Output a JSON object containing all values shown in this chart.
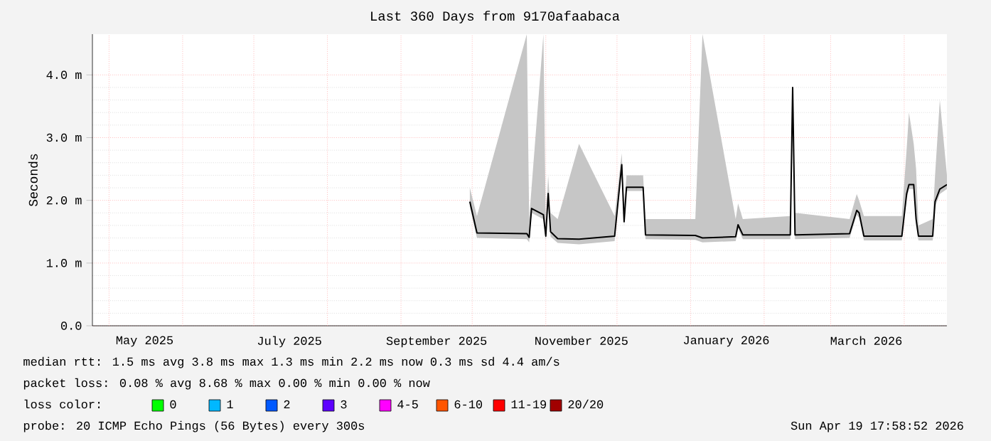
{
  "chart_data": {
    "type": "line",
    "title": "Last 360 Days from 9170afaabaca",
    "ylabel": "Seconds",
    "xlim": [
      "2025-04-24",
      "2026-04-19"
    ],
    "xticks": [
      {
        "value": "2025-05-01",
        "label": null
      },
      {
        "value": "2025-05-16",
        "label": "May 2025"
      },
      {
        "value": "2025-06-01",
        "label": null
      },
      {
        "value": "2025-07-01",
        "label": null
      },
      {
        "value": "2025-07-16",
        "label": "July 2025"
      },
      {
        "value": "2025-08-01",
        "label": null
      },
      {
        "value": "2025-09-01",
        "label": null
      },
      {
        "value": "2025-09-16",
        "label": "September 2025"
      },
      {
        "value": "2025-10-01",
        "label": null
      },
      {
        "value": "2025-11-01",
        "label": null
      },
      {
        "value": "2025-11-16",
        "label": "November 2025"
      },
      {
        "value": "2025-12-01",
        "label": null
      },
      {
        "value": "2026-01-01",
        "label": null
      },
      {
        "value": "2026-01-16",
        "label": "January 2026"
      },
      {
        "value": "2026-02-01",
        "label": null
      },
      {
        "value": "2026-03-01",
        "label": null
      },
      {
        "value": "2026-03-16",
        "label": "March 2026"
      },
      {
        "value": "2026-04-01",
        "label": null
      }
    ],
    "ylim": [
      0,
      4.65
    ],
    "yticks": [
      {
        "value": 0,
        "label": "0.0"
      },
      {
        "value": 1,
        "label": "1.0 m"
      },
      {
        "value": 2,
        "label": "2.0 m"
      },
      {
        "value": 3,
        "label": "3.0 m"
      },
      {
        "value": 4,
        "label": "4.0 m"
      }
    ],
    "grid": true,
    "legend": "bottom",
    "series": [
      {
        "color": "#000000",
        "x": [
          "2025-09-30",
          "2025-10-03",
          "2025-10-24",
          "2025-10-25",
          "2025-10-26",
          "2025-10-31",
          "2025-11-01",
          "2025-11-02",
          "2025-11-03",
          "2025-11-06",
          "2025-11-15",
          "2025-11-30",
          "2025-12-03",
          "2025-12-04",
          "2025-12-05",
          "2025-12-12",
          "2025-12-13",
          "2026-01-03",
          "2026-01-06",
          "2026-01-20",
          "2026-01-21",
          "2026-01-23",
          "2026-02-12",
          "2026-02-13",
          "2026-02-14",
          "2026-03-09",
          "2026-03-12",
          "2026-03-13",
          "2026-03-15",
          "2026-03-31",
          "2026-04-02",
          "2026-04-03",
          "2026-04-05",
          "2026-04-06",
          "2026-04-07",
          "2026-04-13",
          "2026-04-14",
          "2026-04-16",
          "2026-04-19"
        ],
        "values": [
          1.98,
          1.48,
          1.47,
          1.41,
          1.87,
          1.77,
          1.43,
          2.11,
          1.5,
          1.39,
          1.38,
          1.43,
          2.57,
          1.66,
          2.21,
          2.21,
          1.45,
          1.44,
          1.4,
          1.42,
          1.61,
          1.45,
          1.45,
          3.8,
          1.45,
          1.47,
          1.84,
          1.8,
          1.43,
          1.43,
          2.1,
          2.25,
          2.25,
          1.7,
          1.43,
          1.43,
          1.98,
          2.18,
          2.25
        ],
        "lower": [
          1.9,
          1.4,
          1.38,
          1.33,
          1.8,
          1.7,
          1.36,
          2.05,
          1.42,
          1.32,
          1.3,
          1.35,
          2.5,
          1.58,
          2.15,
          2.15,
          1.38,
          1.37,
          1.33,
          1.35,
          1.55,
          1.38,
          1.38,
          3.75,
          1.38,
          1.4,
          1.77,
          1.72,
          1.36,
          1.36,
          2.02,
          2.18,
          2.18,
          1.62,
          1.36,
          1.36,
          1.9,
          2.1,
          2.18
        ],
        "upper": [
          2.2,
          1.75,
          4.65,
          1.7,
          2.2,
          4.65,
          1.6,
          2.4,
          1.8,
          1.7,
          2.9,
          1.75,
          2.75,
          1.9,
          2.4,
          2.4,
          1.7,
          1.7,
          4.65,
          1.7,
          1.95,
          1.7,
          1.75,
          3.85,
          1.8,
          1.7,
          2.1,
          2.0,
          1.75,
          1.75,
          2.8,
          3.4,
          2.9,
          2.5,
          1.6,
          1.7,
          2.4,
          3.6,
          2.4
        ]
      },
      {
        "name": "0",
        "color": "#00ff00"
      },
      {
        "name": "1",
        "color": "#00b8ff"
      },
      {
        "name": "2",
        "color": "#0059ff"
      },
      {
        "name": "3",
        "color": "#5e00ff"
      },
      {
        "name": "4-5",
        "color": "#ff00ff"
      },
      {
        "name": "6-10",
        "color": "#ff5500"
      },
      {
        "name": "11-19",
        "color": "#ff0000"
      },
      {
        "name": "20/20",
        "color": "#a10000"
      }
    ],
    "annotations": [
      "median rtt: 1.5 ms avg 3.8 ms max 1.3 ms min 2.2 ms now 0.3 ms sd 4.4 am/s",
      "packet loss: 0.08 % avg 8.68 % max 0.00 % min 0.00 % now",
      "loss color:",
      "probe: 20 ICMP Echo Pings (56 Bytes) every 300s",
      "Sun Apr 19 17:58:52 2026"
    ]
  }
}
